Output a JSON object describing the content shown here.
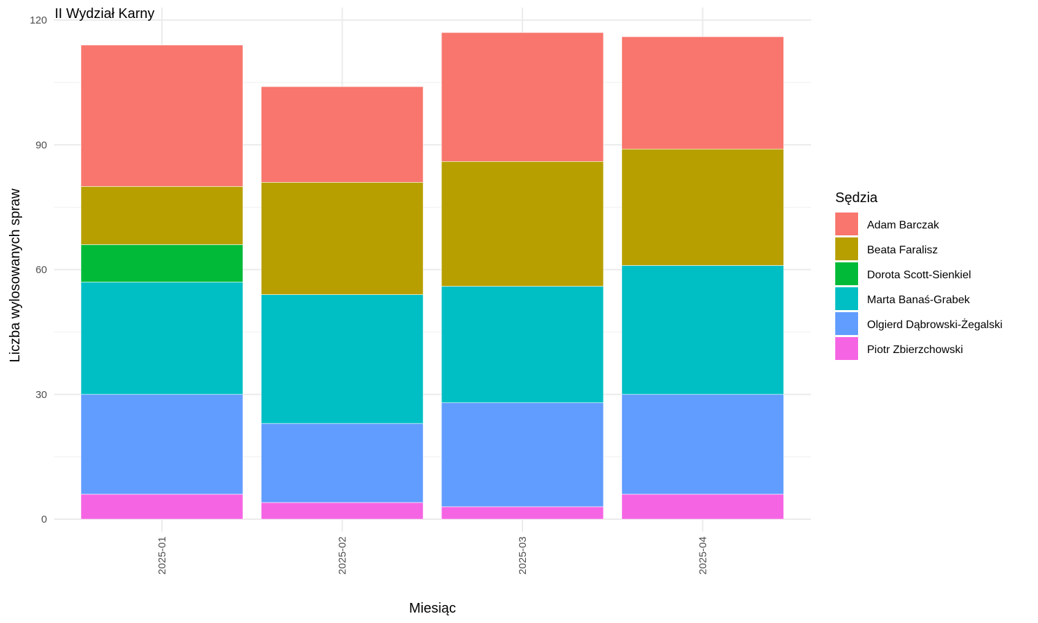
{
  "chart_data": {
    "type": "bar",
    "stacked": true,
    "title": "II Wydział Karny",
    "xlabel": "Miesiąc",
    "ylabel": "Liczba wylosowanych spraw",
    "categories": [
      "2025-01",
      "2025-02",
      "2025-03",
      "2025-04"
    ],
    "ylim": [
      0,
      120
    ],
    "yticks": [
      0,
      30,
      60,
      90,
      120
    ],
    "grid": true,
    "legend": {
      "title": "Sędzia",
      "position": "right"
    },
    "series": [
      {
        "name": "Piotr Zbierzchowski",
        "color": "#F564E3",
        "values": [
          6,
          4,
          3,
          6
        ]
      },
      {
        "name": "Olgierd Dąbrowski-Żegalski",
        "color": "#619CFF",
        "values": [
          24,
          19,
          25,
          24
        ]
      },
      {
        "name": "Marta Banaś-Grabek",
        "color": "#00BFC4",
        "values": [
          27,
          31,
          28,
          31
        ]
      },
      {
        "name": "Dorota Scott-Sienkiel",
        "color": "#00BA38",
        "values": [
          9,
          0,
          0,
          0
        ]
      },
      {
        "name": "Beata Faralisz",
        "color": "#B79F00",
        "values": [
          14,
          27,
          30,
          28
        ]
      },
      {
        "name": "Adam Barczak",
        "color": "#F8766D",
        "values": [
          34,
          23,
          31,
          27
        ]
      }
    ],
    "legend_order": [
      "Adam Barczak",
      "Beata Faralisz",
      "Dorota Scott-Sienkiel",
      "Marta Banaś-Grabek",
      "Olgierd Dąbrowski-Żegalski",
      "Piotr Zbierzchowski"
    ]
  }
}
